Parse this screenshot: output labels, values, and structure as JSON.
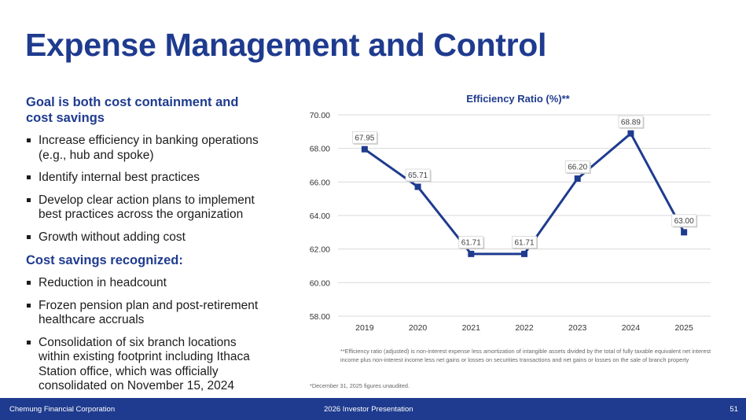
{
  "page": {
    "title": "Expense Management and Control"
  },
  "left_panel": {
    "goal_heading": "Goal is both cost containment and cost savings",
    "goal_bullets": [
      "Increase efficiency in banking operations (e.g., hub and spoke)",
      "Identify internal best practices",
      "Develop clear action plans to implement best practices across the organization",
      "Growth without adding cost"
    ],
    "savings_heading": "Cost savings recognized:",
    "savings_bullets": [
      "Reduction in headcount",
      "Frozen pension plan and post-retirement healthcare accruals",
      "Consolidation of six branch locations within existing footprint including Ithaca Station office, which was officially consolidated on November 15, 2024"
    ]
  },
  "chart_data": {
    "type": "line",
    "title": "Efficiency Ratio (%)**",
    "categories": [
      "2019",
      "2020",
      "2021",
      "2022",
      "2023",
      "2024",
      "2025"
    ],
    "series": [
      {
        "values": [
          67.95,
          65.71,
          61.71,
          61.71,
          66.2,
          68.89,
          63.0
        ]
      }
    ],
    "data_labels": [
      "67.95",
      "65.71",
      "61.71",
      "61.71",
      "66.20",
      "68.89",
      "63.00"
    ],
    "ylim": [
      58.0,
      70.0
    ],
    "y_ticks": [
      "58.00",
      "60.00",
      "62.00",
      "64.00",
      "66.00",
      "68.00",
      "70.00"
    ],
    "y_tick_values": [
      58,
      60,
      62,
      64,
      66,
      68,
      70
    ],
    "grid": true,
    "line_color": "#1f3b8f",
    "grid_color": "#d9d9d9"
  },
  "footnotes": {
    "efficiency_note": "**Efficiency ratio (adjusted) is non-interest expense less amortization of intangible assets divided by the total of fully taxable equivalent net interest income plus non-interest income less net gains or losses on securities transactions and net gains or losses on the sale of branch property",
    "unaudited_note": "*December 31, 2025 figures unaudited."
  },
  "footer": {
    "company": "Chemung Financial Corporation",
    "presentation": "2026 Investor Presentation",
    "page_number": "51"
  }
}
